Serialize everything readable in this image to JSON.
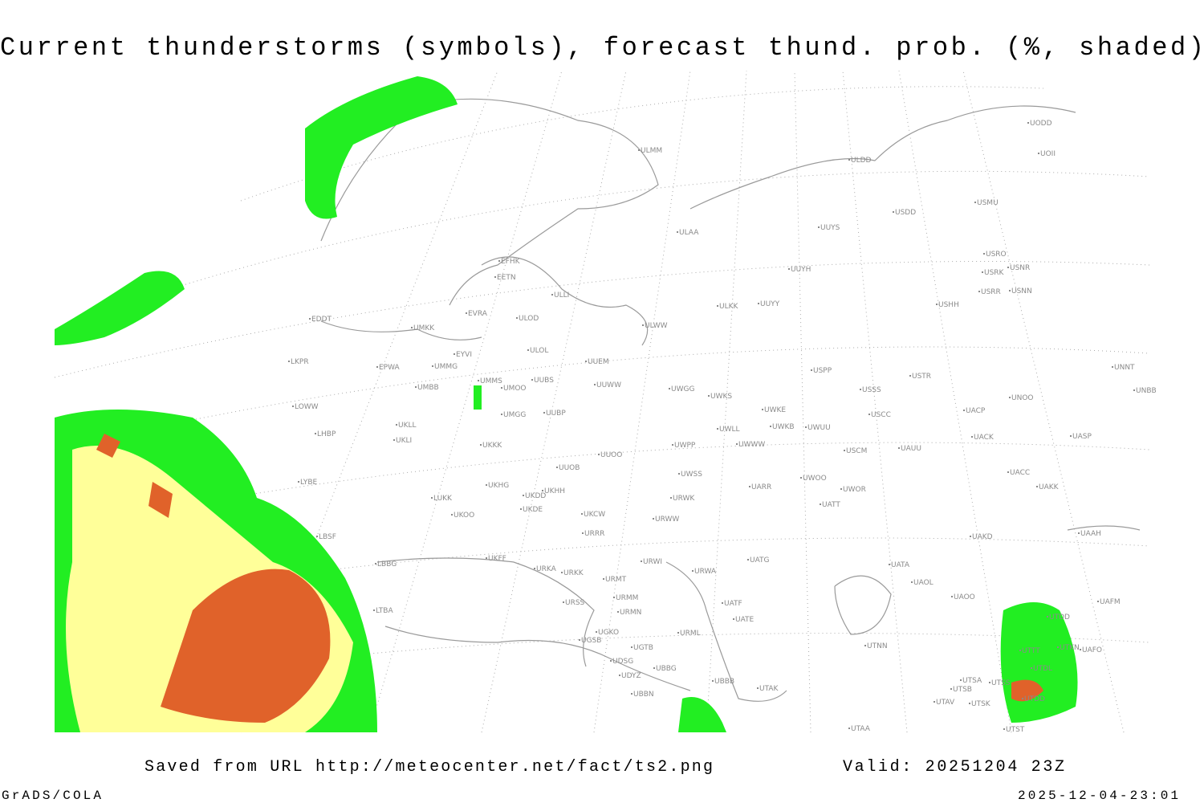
{
  "title": "Current thunderstorms (symbols), forecast thund. prob. (%, shaded)",
  "footer": {
    "source": "Saved from URL http://meteocenter.net/fact/ts2.png",
    "valid": "Valid: 20251204 23Z",
    "software": "GrADS/COLA",
    "timestamp": "2025-12-04-23:01"
  },
  "stations": [
    "UODD",
    "UOII",
    "ULDD",
    "ULMM",
    "USMU",
    "USDD",
    "UUYS",
    "ULAA",
    "USRO",
    "USRK",
    "USNR",
    "UUYH",
    "EFHK",
    "EETN",
    "USRR",
    "USNN",
    "ULLI",
    "ULKK",
    "UUYY",
    "USHH",
    "EVRA",
    "ULOD",
    "EDDT",
    "UMKK",
    "ULWW",
    "EYVI",
    "ULOL",
    "UUEM",
    "LKPR",
    "EPWA",
    "UMMG",
    "USPP",
    "USTR",
    "UNNT",
    "UMMS",
    "UUBS",
    "UMOO",
    "UUWW",
    "UWGG",
    "USSS",
    "UNOO",
    "UNBB",
    "UMBB",
    "UWKS",
    "LOWW",
    "UMGG",
    "UUBP",
    "UWKE",
    "USCC",
    "UACP",
    "LHBP",
    "UKLL",
    "UWKB",
    "UWUU",
    "UWLL",
    "UACK",
    "UASP",
    "UKLI",
    "UKKK",
    "UWPP",
    "UWWW",
    "USCM",
    "UAUU",
    "UUOO",
    "UUOB",
    "UACC",
    "LYBE",
    "UWSS",
    "UKHG",
    "UKHH",
    "UKDD",
    "UARR",
    "UWOO",
    "UWOR",
    "UAKK",
    "LUKK",
    "URWK",
    "UKDE",
    "UKOO",
    "UKCW",
    "UATT",
    "URWW",
    "UAAH",
    "URRR",
    "LBSF",
    "UAKD",
    "UKFF",
    "LBBG",
    "URWI",
    "UATG",
    "URKA",
    "URKK",
    "URWA",
    "UATA",
    "URMT",
    "UAOL",
    "UAOO",
    "URSS",
    "URMM",
    "UATF",
    "UATE",
    "UAFM",
    "URMN",
    "UTDD",
    "LTBA",
    "UGKO",
    "URML",
    "UGSB",
    "UTNN",
    "UGTB",
    "UTTT",
    "UTKN",
    "UAFO",
    "UDSG",
    "UBBG",
    "UTDL",
    "UDYZ",
    "UBBB",
    "UTSA",
    "UTSS",
    "UTAK",
    "UTSB",
    "UBBN",
    "UTAV",
    "UTSK",
    "UTDD",
    "UTAA",
    "UTST"
  ]
}
